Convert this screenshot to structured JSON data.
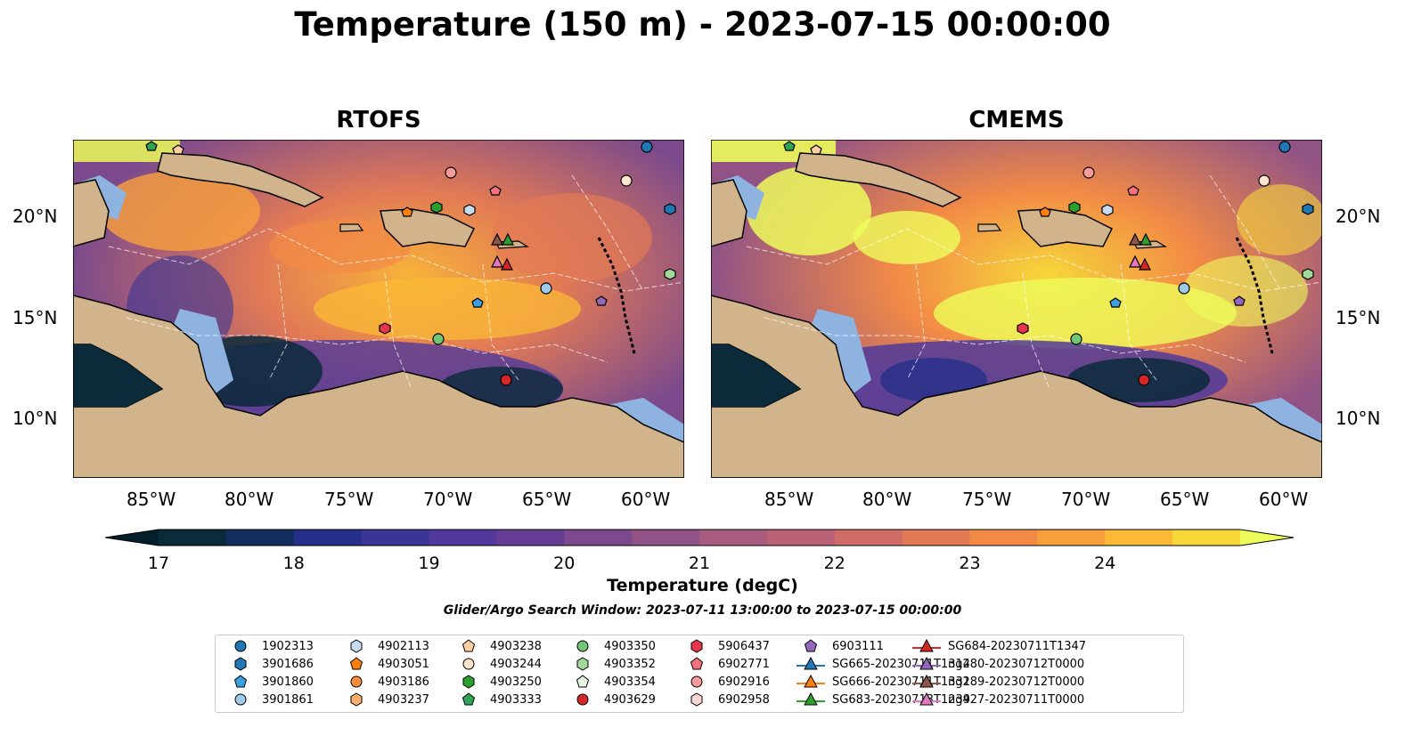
{
  "title": "Temperature (150 m) - 2023-07-15 00:00:00",
  "panels": [
    {
      "title": "RTOFS"
    },
    {
      "title": "CMEMS"
    }
  ],
  "axes": {
    "lon_labels": [
      "85°W",
      "80°W",
      "75°W",
      "70°W",
      "65°W",
      "60°W"
    ],
    "lat_labels": [
      "20°N",
      "15°N",
      "10°N"
    ]
  },
  "colorbar": {
    "label": "Temperature (degC)",
    "ticks": [
      "17",
      "18",
      "19",
      "20",
      "21",
      "22",
      "23",
      "24"
    ],
    "colors": [
      "#0b2a3a",
      "#132e5e",
      "#26308a",
      "#3a3596",
      "#50399a",
      "#663f94",
      "#7c4a8c",
      "#915386",
      "#a65b7f",
      "#bb6177",
      "#cf6c68",
      "#e27a55",
      "#f28a46",
      "#f9a03d",
      "#fbb936",
      "#f6d73a"
    ],
    "extend_low": "#041f2b",
    "extend_high": "#edfc5a"
  },
  "search_window": "Glider/Argo Search Window: 2023-07-11 13:00:00 to 2023-07-15 00:00:00",
  "legend": [
    {
      "label": "1902313",
      "marker": "circle",
      "color": "#1f77b4"
    },
    {
      "label": "3901686",
      "marker": "hexagon",
      "color": "#1f77b4"
    },
    {
      "label": "3901860",
      "marker": "pentagon",
      "color": "#3aa0e0"
    },
    {
      "label": "3901861",
      "marker": "circle",
      "color": "#9ecae9"
    },
    {
      "label": "4902113",
      "marker": "hexagon",
      "color": "#c6dbef"
    },
    {
      "label": "4903051",
      "marker": "pentagon",
      "color": "#ff7f0e"
    },
    {
      "label": "4903186",
      "marker": "circle",
      "color": "#fd8d3c"
    },
    {
      "label": "4903237",
      "marker": "hexagon",
      "color": "#fdae6b"
    },
    {
      "label": "4903238",
      "marker": "pentagon",
      "color": "#fdd0a2"
    },
    {
      "label": "4903244",
      "marker": "circle",
      "color": "#fee6ce"
    },
    {
      "label": "4903250",
      "marker": "hexagon",
      "color": "#2ca02c"
    },
    {
      "label": "4903333",
      "marker": "pentagon",
      "color": "#31a354"
    },
    {
      "label": "4903350",
      "marker": "circle",
      "color": "#74c476"
    },
    {
      "label": "4903352",
      "marker": "hexagon",
      "color": "#a1d99b"
    },
    {
      "label": "4903354",
      "marker": "pentagon",
      "color": "#e5f5e0"
    },
    {
      "label": "4903629",
      "marker": "circle",
      "color": "#d62728"
    },
    {
      "label": "5906437",
      "marker": "hexagon",
      "color": "#e6344a"
    },
    {
      "label": "6902771",
      "marker": "pentagon",
      "color": "#f4727e"
    },
    {
      "label": "6902916",
      "marker": "circle",
      "color": "#f79a9a"
    },
    {
      "label": "6902958",
      "marker": "hexagon",
      "color": "#fcd5d5"
    },
    {
      "label": "6903111",
      "marker": "pentagon",
      "color": "#9467bd"
    },
    {
      "label": "SG665-20230711T1314",
      "marker": "triangle",
      "color": "#1f77b4"
    },
    {
      "label": "SG666-20230711T1331",
      "marker": "triangle",
      "color": "#ff7f0e"
    },
    {
      "label": "SG683-20230713T1239",
      "marker": "triangle",
      "color": "#2ca02c"
    },
    {
      "label": "SG684-20230711T1347",
      "marker": "triangle",
      "color": "#d62728"
    },
    {
      "label": "ng280-20230712T0000",
      "marker": "triangle",
      "color": "#9467bd"
    },
    {
      "label": "ng289-20230712T0000",
      "marker": "triangle",
      "color": "#8c564b"
    },
    {
      "label": "ng427-20230711T0000",
      "marker": "triangle",
      "color": "#e377c2"
    }
  ]
}
